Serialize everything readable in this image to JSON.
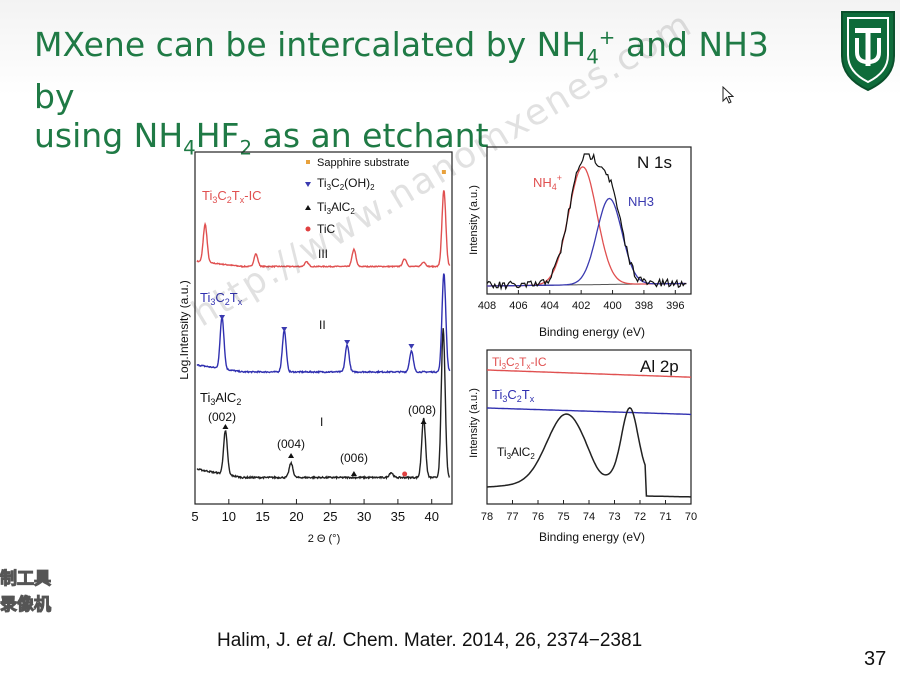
{
  "slide": {
    "title_line1": [
      "MXene can be intercalated by NH",
      "4",
      "+",
      " and NH3 by"
    ],
    "title_line2": [
      "using NH",
      "4",
      "HF",
      "2",
      " as an etchant"
    ],
    "citation": [
      "Halim, J. ",
      "et al.",
      " Chem. Mater. 2014, 26, 2374−2381"
    ],
    "page_number": "37",
    "watermark": "http://www.nanomxenes.com",
    "overlay_text": [
      "制工具",
      "录像机"
    ],
    "logo": "tulane-shield-icon",
    "accent_color": "#1f7a45"
  },
  "chart_data": [
    {
      "type": "line",
      "xlabel": "2 Θ (°)",
      "ylabel": "Log.Intensity (a.u.)",
      "xlim": [
        5,
        43
      ],
      "xticks": [
        5,
        10,
        15,
        20,
        25,
        30,
        35,
        40
      ],
      "legend": [
        {
          "marker": "square",
          "color": "#e8a13c",
          "label": "Sapphire substrate"
        },
        {
          "marker": "triangle-down",
          "color": "#3a3ab0",
          "label": [
            "Ti",
            "3",
            "C",
            "2",
            "(OH)",
            "2"
          ]
        },
        {
          "marker": "triangle-up",
          "color": "#111111",
          "label": [
            "Ti",
            "3",
            "AlC",
            "2"
          ]
        },
        {
          "marker": "circle",
          "color": "#e04040",
          "label": "TiC"
        }
      ],
      "series": [
        {
          "name": [
            "Ti",
            "3",
            "C",
            "2",
            "T",
            "x",
            "-IC"
          ],
          "region": "III",
          "color": "#e05050",
          "peaks": [
            [
              6.5,
              1.0
            ],
            [
              14.0,
              0.33
            ],
            [
              21.5,
              0.12
            ],
            [
              28.5,
              0.45
            ],
            [
              36.0,
              0.2
            ],
            [
              38.8,
              0.12
            ],
            [
              41.8,
              2.0
            ]
          ]
        },
        {
          "name": [
            "Ti",
            "3",
            "C",
            "2",
            "T",
            "x"
          ],
          "region": "II",
          "color": "#3030b0",
          "peaks": [
            [
              9.0,
              1.0
            ],
            [
              18.2,
              0.8
            ],
            [
              27.5,
              0.52
            ],
            [
              37.0,
              0.4
            ],
            [
              41.8,
              1.9
            ]
          ]
        },
        {
          "name": [
            "Ti",
            "3",
            "AlC",
            "2"
          ],
          "region": "I",
          "color": "#222222",
          "peaks": [
            [
              9.5,
              0.7
            ],
            [
              19.2,
              0.23
            ],
            [
              34.0,
              0.08
            ],
            [
              38.8,
              0.95
            ],
            [
              41.7,
              2.4
            ]
          ]
        }
      ],
      "annotations": [
        "(002)",
        "(004)",
        "(006)",
        "(008)"
      ]
    },
    {
      "type": "line",
      "title": "N 1s",
      "xlabel": "Binding energy (eV)",
      "ylabel": "Intensity (a.u.)",
      "xlim": [
        408,
        395
      ],
      "xticks": [
        408,
        406,
        404,
        402,
        400,
        398,
        396
      ],
      "series": [
        {
          "name": [
            "NH",
            "4",
            "+"
          ],
          "color": "#e05050",
          "center": 401.9
        },
        {
          "name": "NH3",
          "color": "#3a3ab0",
          "center": 400.2
        }
      ]
    },
    {
      "type": "line",
      "title": "Al 2p",
      "xlabel": "Binding energy (eV)",
      "ylabel": "Intensity (a.u.)",
      "xlim": [
        78,
        70
      ],
      "xticks": [
        78,
        77,
        76,
        75,
        74,
        73,
        72,
        71,
        70
      ],
      "series": [
        {
          "name": [
            "Ti",
            "3",
            "C",
            "2",
            "T",
            "x",
            "-IC"
          ],
          "color": "#e05050"
        },
        {
          "name": [
            "Ti",
            "3",
            "C",
            "2",
            "T",
            "x"
          ],
          "color": "#3030b0"
        },
        {
          "name": [
            "Ti",
            "3",
            "AlC",
            "2"
          ],
          "color": "#222222",
          "peaks": [
            74.9,
            72.4
          ]
        }
      ]
    }
  ]
}
